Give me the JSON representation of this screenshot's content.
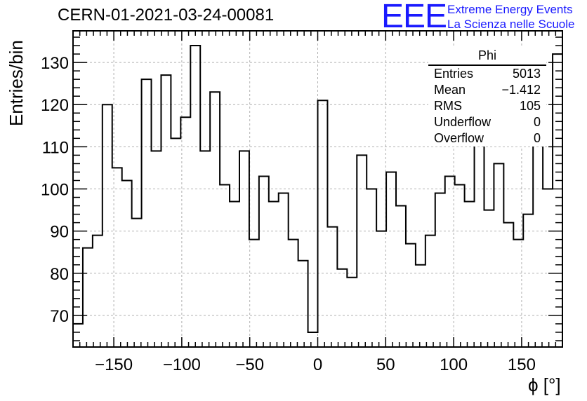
{
  "header": {
    "title": "CERN-01-2021-03-24-00081",
    "logo_text": "EEE",
    "logo_line1": "Extreme Energy Events",
    "logo_line2": "La Scienza nelle Scuole"
  },
  "stats": {
    "name": "Phi",
    "rows": [
      {
        "label": "Entries",
        "value": "5013"
      },
      {
        "label": "Mean",
        "value": "−1.412"
      },
      {
        "label": "RMS",
        "value": "105"
      },
      {
        "label": "Underflow",
        "value": "0"
      },
      {
        "label": "Overflow",
        "value": "0"
      }
    ]
  },
  "chart_data": {
    "type": "bar",
    "title": "CERN-01-2021-03-24-00081",
    "xlabel": "ϕ [°]",
    "ylabel": "Entries/bin",
    "xlim": [
      -180,
      180
    ],
    "ylim": [
      62.5,
      137.5
    ],
    "bin_width": 7.2,
    "x_ticks": [
      -150,
      -100,
      -50,
      0,
      50,
      100,
      150
    ],
    "y_ticks": [
      70,
      80,
      90,
      100,
      110,
      120,
      130
    ],
    "grid": true,
    "line_color": "#000000",
    "values": [
      68,
      86,
      89,
      120,
      105,
      102,
      93,
      126,
      109,
      127,
      112,
      117,
      134,
      109,
      123,
      101,
      97,
      109,
      88,
      103,
      97,
      99,
      88,
      83,
      66,
      121,
      91,
      81,
      79,
      108,
      100,
      90,
      104,
      96,
      87,
      82,
      89,
      99,
      103,
      101,
      97,
      112,
      95,
      106,
      92,
      88,
      94,
      115,
      100,
      132
    ]
  }
}
